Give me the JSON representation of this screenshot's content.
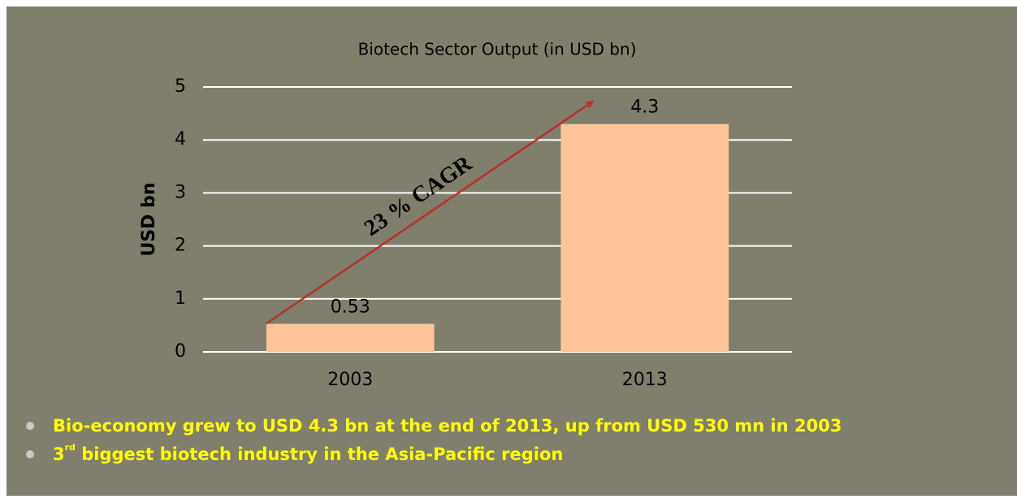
{
  "chart_data": {
    "type": "bar",
    "title": "Biotech Sector Output (in USD bn)",
    "y_label": "USD bn",
    "categories": [
      "2003",
      "2013"
    ],
    "values": [
      0.53,
      4.3
    ],
    "color": "#ffc49a",
    "ylim": [
      0,
      5
    ],
    "yticks": [
      0,
      1,
      2,
      3,
      4,
      5
    ],
    "grid": true,
    "annotation": "23 % CAGR"
  },
  "bullets": [
    "Bio-economy grew to USD 4.3 bn at the end of 2013, up from USD 530 mn in 2003",
    {
      "number": "3",
      "superscript": "rd",
      "text": " biggest biotech industry in the Asia-Pacific region"
    }
  ]
}
